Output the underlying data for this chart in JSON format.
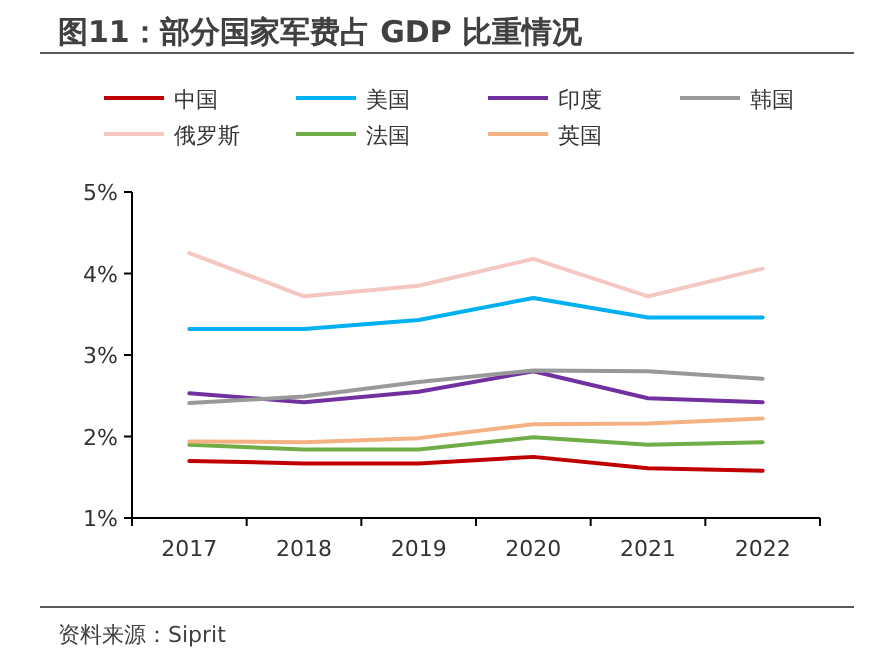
{
  "chart_data": {
    "type": "line",
    "title": "图11：部分国家军费占 GDP 比重情况",
    "categories": [
      "2017",
      "2018",
      "2019",
      "2020",
      "2021",
      "2022"
    ],
    "series": [
      {
        "name": "中国",
        "color": "#c00000",
        "values": [
          1.7,
          1.67,
          1.67,
          1.75,
          1.61,
          1.58
        ]
      },
      {
        "name": "美国",
        "color": "#00b0f0",
        "values": [
          3.32,
          3.32,
          3.43,
          3.7,
          3.46,
          3.46
        ]
      },
      {
        "name": "印度",
        "color": "#7030a0",
        "values": [
          2.53,
          2.42,
          2.55,
          2.8,
          2.47,
          2.42
        ]
      },
      {
        "name": "韩国",
        "color": "#999999",
        "values": [
          2.41,
          2.49,
          2.67,
          2.81,
          2.8,
          2.71
        ]
      },
      {
        "name": "俄罗斯",
        "color": "#f4c7c3",
        "values": [
          4.25,
          3.72,
          3.85,
          4.18,
          3.72,
          4.06
        ]
      },
      {
        "name": "法国",
        "color": "#70ad47",
        "values": [
          1.9,
          1.84,
          1.84,
          1.99,
          1.9,
          1.93
        ]
      },
      {
        "name": "英国",
        "color": "#f4b183",
        "values": [
          1.94,
          1.93,
          1.98,
          2.15,
          2.16,
          2.22
        ]
      }
    ],
    "ylim": [
      1,
      5
    ],
    "yticks": [
      {
        "value": 1,
        "label": "1%"
      },
      {
        "value": 2,
        "label": "2%"
      },
      {
        "value": 3,
        "label": "3%"
      },
      {
        "value": 4,
        "label": "4%"
      },
      {
        "value": 5,
        "label": "5%"
      }
    ],
    "legend": "top",
    "marker": "none",
    "line_style": "solid",
    "annotations": [
      "资料来源：Siprit"
    ]
  }
}
